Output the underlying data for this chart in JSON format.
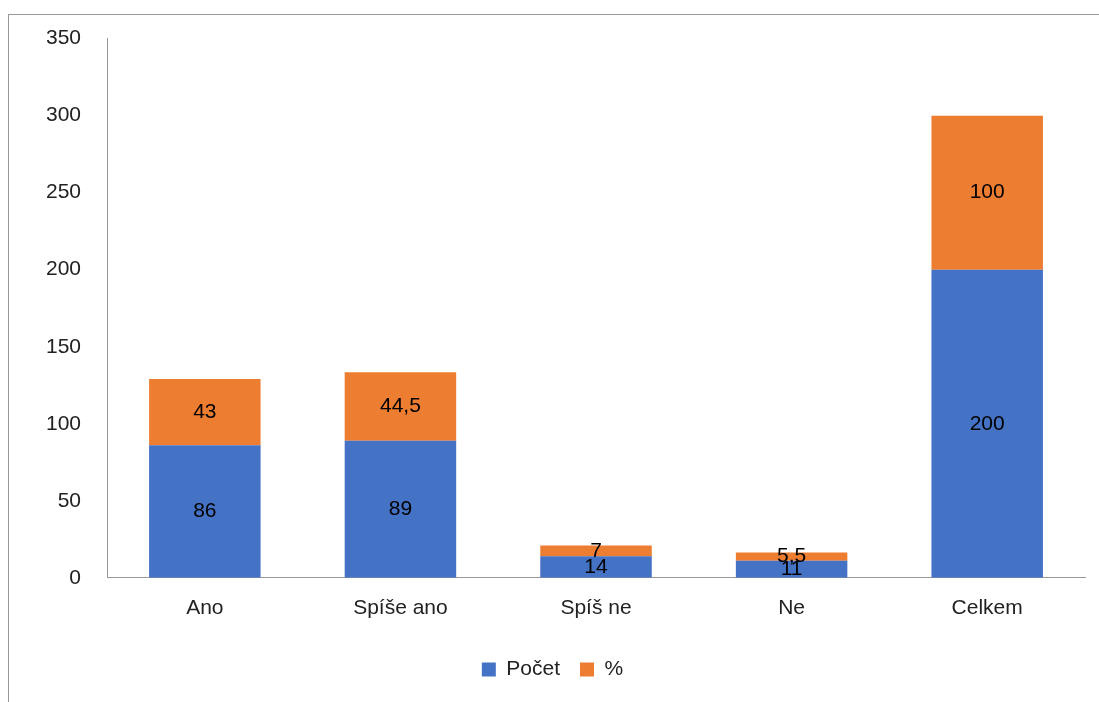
{
  "chart_data": {
    "type": "bar",
    "stacked": true,
    "categories": [
      "Ano",
      "Spíše ano",
      "Spíš ne",
      "Ne",
      "Celkem"
    ],
    "series": [
      {
        "name": "Počet",
        "color": "#4472c4",
        "values": [
          86,
          89,
          14,
          11,
          200
        ],
        "value_labels": [
          "86",
          "89",
          "14",
          "11",
          "200"
        ]
      },
      {
        "name": "%",
        "color": "#ed7d31",
        "values": [
          43,
          44.5,
          7,
          5.5,
          100
        ],
        "value_labels": [
          "43",
          "44,5",
          "7",
          "5,5",
          "100"
        ]
      }
    ],
    "ylim": [
      0,
      350
    ],
    "yticks": [
      0,
      50,
      100,
      150,
      200,
      250,
      300,
      350
    ],
    "grid": false,
    "legend": "bottom"
  }
}
